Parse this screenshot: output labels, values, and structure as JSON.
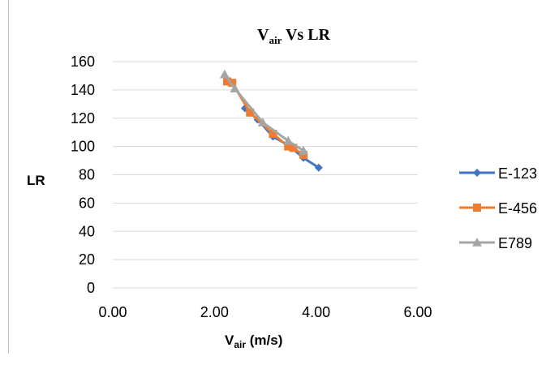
{
  "chart_data": {
    "type": "scatter",
    "title_main": "V",
    "title_sub": "air",
    "title_rest": " Vs LR",
    "xlabel_main": "V",
    "xlabel_sub": "air",
    "xlabel_rest": " (m/s)",
    "ylabel": "LR",
    "xlim": [
      0,
      6
    ],
    "ylim": [
      0,
      160
    ],
    "x_ticks": [
      "0.00",
      "2.00",
      "4.00",
      "6.00"
    ],
    "y_ticks": [
      "0",
      "20",
      "40",
      "60",
      "80",
      "100",
      "120",
      "140",
      "160"
    ],
    "grid": "horizontal",
    "legend_position": "right",
    "series": [
      {
        "name": "E-123",
        "color": "#4472C4",
        "marker": "diamond",
        "points": [
          [
            2.6,
            127
          ],
          [
            2.85,
            119
          ],
          [
            3.15,
            107
          ],
          [
            3.45,
            101
          ],
          [
            3.75,
            92
          ],
          [
            4.05,
            85
          ]
        ]
      },
      {
        "name": "E-456",
        "color": "#ED7D31",
        "marker": "square",
        "points": [
          [
            2.25,
            146
          ],
          [
            2.35,
            145
          ],
          [
            2.7,
            124
          ],
          [
            3.15,
            109
          ],
          [
            3.45,
            100
          ],
          [
            3.55,
            99
          ],
          [
            3.75,
            94
          ]
        ]
      },
      {
        "name": "E789",
        "color": "#A5A5A5",
        "marker": "triangle",
        "points": [
          [
            2.2,
            151
          ],
          [
            2.4,
            141
          ],
          [
            2.95,
            117
          ],
          [
            3.45,
            104
          ],
          [
            3.75,
            97
          ]
        ]
      }
    ]
  }
}
